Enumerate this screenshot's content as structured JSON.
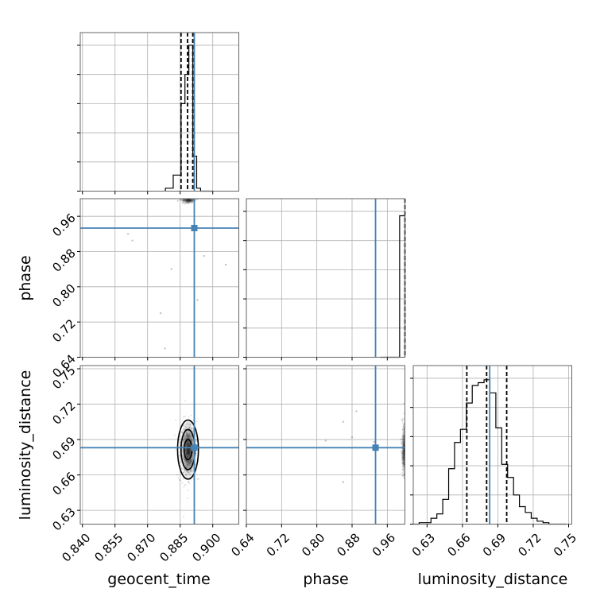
{
  "chart_data": {
    "type": "corner",
    "parameters": [
      "geocent_time",
      "phase",
      "luminosity_distance"
    ],
    "axis_labels": {
      "geocent_time": "geocent_time",
      "phase": "phase",
      "luminosity_distance": "luminosity_distance"
    },
    "ranges": {
      "geocent_time": [
        0.839,
        0.912
      ],
      "phase": [
        0.64,
        1.0
      ],
      "luminosity_distance": [
        0.6183,
        0.7527
      ]
    },
    "ticks": {
      "geocent_time": [
        "0.840",
        "0.855",
        "0.870",
        "0.885",
        "0.900"
      ],
      "phase": [
        "0.64",
        "0.72",
        "0.80",
        "0.88",
        "0.96"
      ],
      "luminosity_distance": [
        "0.63",
        "0.66",
        "0.69",
        "0.72",
        "0.75"
      ]
    },
    "truths": {
      "geocent_time": 0.8915,
      "phase": 0.9333,
      "luminosity_distance": 0.6831
    },
    "truth_color": "#4682b4",
    "quantiles": {
      "geocent_time": [
        0.8854,
        0.8884,
        0.8908
      ],
      "phase": [
        1.0
      ],
      "luminosity_distance": [
        0.6637,
        0.6805,
        0.6975
      ]
    },
    "histograms": {
      "geocent_time": {
        "edges": [
          0.8782,
          0.8818,
          0.8854,
          0.8872,
          0.889,
          0.8908,
          0.8926,
          0.8944,
          0.8963,
          0.8999
        ],
        "heights": [
          0.02,
          0.11,
          0.6,
          0.8,
          1.0,
          0.24,
          0.02,
          0.0,
          0.0
        ]
      },
      "phase": {
        "edges": [
          0.944,
          0.955,
          0.966,
          0.977,
          0.988,
          1.0
        ],
        "heights": [
          0.0,
          0.0,
          0.0,
          0.0,
          0.97
        ]
      },
      "luminosity_distance": {
        "edges": [
          0.6183,
          0.6233,
          0.6283,
          0.6333,
          0.6383,
          0.6433,
          0.6483,
          0.6533,
          0.6583,
          0.6633,
          0.6683,
          0.6733,
          0.6783,
          0.6833,
          0.6883,
          0.6933,
          0.6983,
          0.7033,
          0.7083,
          0.7133,
          0.7183,
          0.7233,
          0.7283,
          0.7333,
          0.7383,
          0.7433,
          0.7483
        ],
        "heights": [
          0.0,
          0.01,
          0.01,
          0.04,
          0.07,
          0.17,
          0.38,
          0.56,
          0.65,
          0.83,
          0.95,
          0.97,
          0.99,
          0.9,
          0.66,
          0.41,
          0.32,
          0.2,
          0.12,
          0.08,
          0.04,
          0.02,
          0.01,
          0.0,
          0.0,
          0.0
        ]
      }
    },
    "grid": true,
    "legend": "none"
  }
}
